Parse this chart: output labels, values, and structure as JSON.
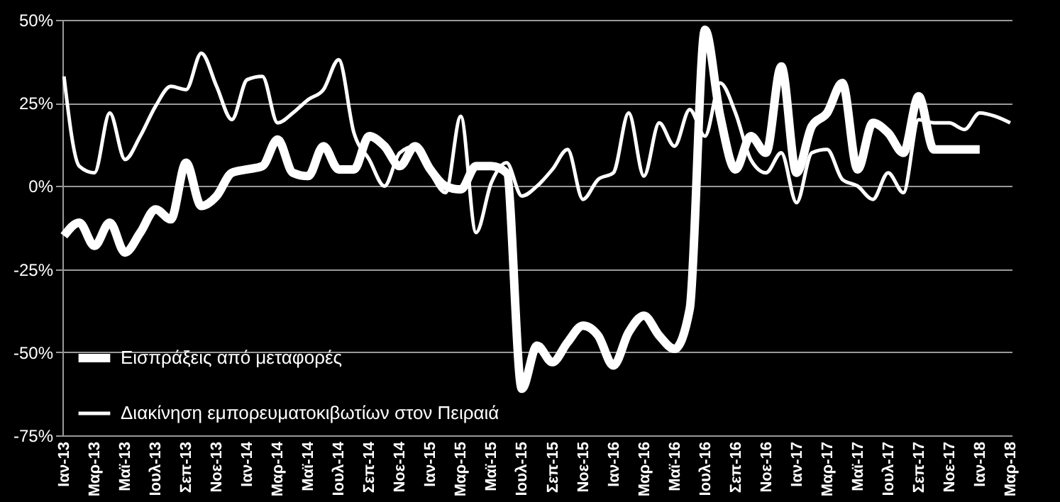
{
  "chart_data": {
    "type": "line",
    "categories": [
      "Ιαν-13",
      null,
      "Μαρ-13",
      null,
      "Μαϊ-13",
      null,
      "Ιουλ-13",
      null,
      "Σεπ-13",
      null,
      "Νοε-13",
      null,
      "Ιαν-14",
      null,
      "Μαρ-14",
      null,
      "Μαϊ-14",
      null,
      "Ιουλ-14",
      null,
      "Σεπ-14",
      null,
      "Νοε-14",
      null,
      "Ιαν-15",
      null,
      "Μαρ-15",
      null,
      "Μαϊ-15",
      null,
      "Ιουλ-15",
      null,
      "Σεπ-15",
      null,
      "Νοε-15",
      null,
      "Ιαν-16",
      null,
      "Μαρ-16",
      null,
      "Μαϊ-16",
      null,
      "Ιουλ-16",
      null,
      "Σεπ-16",
      null,
      "Νοε-16",
      null,
      "Ιαν-17",
      null,
      "Μαρ-17",
      null,
      "Μαϊ-17",
      null,
      "Ιουλ-17",
      null,
      "Σεπ-17",
      null,
      "Νοε-17",
      null,
      "Ιαν-18",
      null,
      "Μαρ-18"
    ],
    "series": [
      {
        "name": "Εισπράξεις από μεταφορές",
        "color": "#ffffff",
        "values": [
          -15,
          -11,
          -18,
          -11,
          -20,
          -14,
          -7,
          -10,
          7,
          -6,
          -3,
          4,
          5,
          6,
          14,
          4,
          3,
          12,
          5,
          5,
          15,
          12,
          6,
          12,
          5,
          0,
          -1,
          6,
          6,
          4,
          -61,
          -48,
          -53,
          -47,
          -42,
          -45,
          -54,
          -44,
          -39,
          -45,
          -49,
          -37,
          47,
          21,
          5,
          15,
          10,
          36,
          4,
          18,
          22,
          31,
          5,
          19,
          16,
          10,
          27,
          11,
          11,
          11,
          11,
          null,
          null
        ]
      },
      {
        "name": "Διακίνηση εμπορευματοκιβωτίων στον Πειραιά",
        "color": "#ffffff",
        "values": [
          33,
          6,
          4,
          22,
          8,
          15,
          24,
          30,
          29,
          40,
          30,
          20,
          32,
          33,
          19,
          22,
          26,
          29,
          38,
          16,
          8,
          0,
          10,
          12,
          4,
          -2,
          21,
          -14,
          1,
          7,
          -3,
          0,
          5,
          11,
          -4,
          2,
          4,
          22,
          3,
          19,
          12,
          23,
          15,
          31,
          22,
          8,
          4,
          10,
          -5,
          10,
          11,
          2,
          0,
          -4,
          4,
          -2,
          20,
          19,
          19,
          17,
          22,
          21,
          19
        ]
      }
    ],
    "ylim": [
      -75,
      50
    ],
    "yticks": [
      {
        "value": -75,
        "label": "-75%"
      },
      {
        "value": -50,
        "label": "-50%"
      },
      {
        "value": -25,
        "label": "-25%"
      },
      {
        "value": 0,
        "label": "0%"
      },
      {
        "value": 25,
        "label": "25%"
      },
      {
        "value": 50,
        "label": "50%"
      }
    ],
    "grid": "y",
    "legend": "bottom left",
    "marker": "none",
    "line_style": "solid"
  }
}
